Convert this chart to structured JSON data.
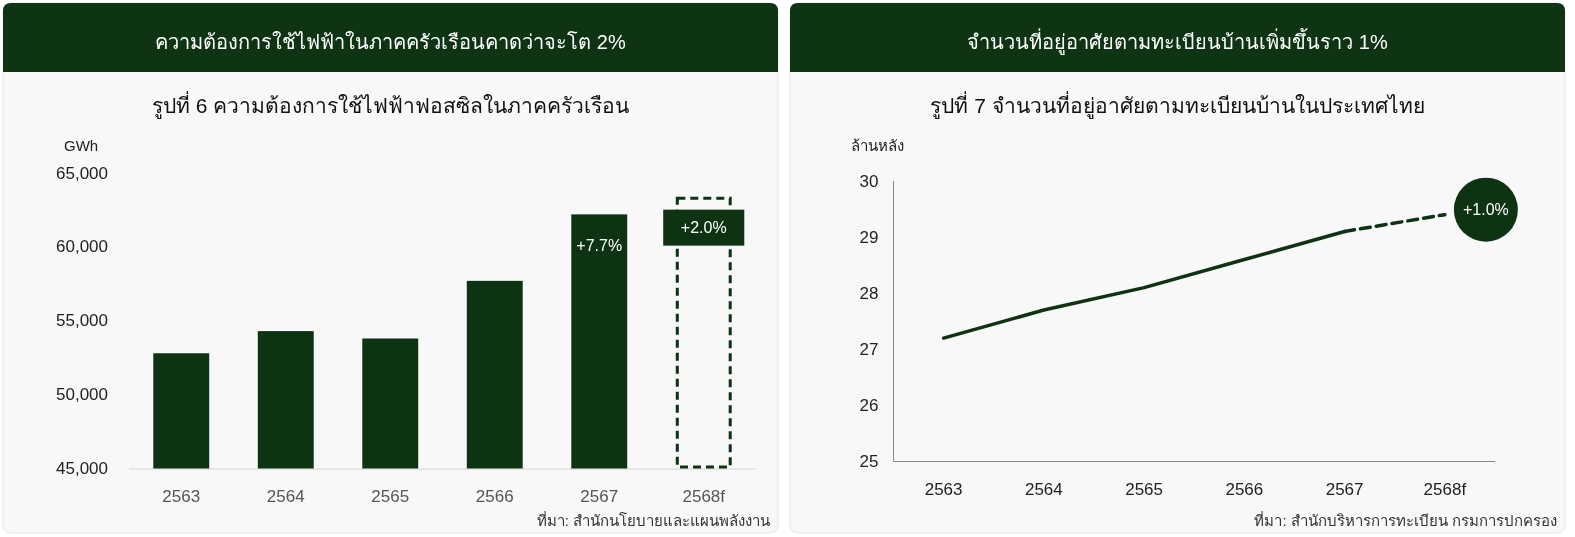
{
  "chart_data": [
    {
      "type": "bar",
      "title": "ความต้องการใช้ไฟฟ้าในภาคครัวเรือนคาดว่าจะโต 2%",
      "subtitle": "รูปที่ 6 ความต้องการใช้ไฟฟ้าฟอสซิลในภาคครัวเรือน",
      "ylabel": "GWh",
      "categories": [
        "2563",
        "2564",
        "2565",
        "2566",
        "2567",
        "2568f"
      ],
      "series": [
        {
          "color": "#0e3313",
          "values": [
            52800,
            54300,
            53800,
            57700,
            62200,
            null
          ]
        },
        {
          "color": "#0e3313",
          "line_style": "dashed",
          "values": [
            null,
            null,
            null,
            null,
            null,
            63400
          ]
        }
      ],
      "ylim": [
        45000,
        65000
      ],
      "yticks": [
        {
          "value": 45000,
          "label": "45,000"
        },
        {
          "value": 50000,
          "label": "50,000"
        },
        {
          "value": 55000,
          "label": "55,000"
        },
        {
          "value": 60000,
          "label": "60,000"
        },
        {
          "value": 65000,
          "label": "65,000"
        }
      ],
      "annotations": [
        {
          "text": "+7.7%",
          "x": "2567",
          "y": 62200
        },
        {
          "text": "+2.0%",
          "x": "2568f",
          "y": 63400
        },
        "ที่มา: สำนักนโยบายและแผนพลังงาน"
      ]
    },
    {
      "type": "line",
      "title": "จำนวนที่อยู่อาศัยตามทะเบียนบ้านเพิ่มขึ้นราว 1%",
      "subtitle": "รูปที่ 7 จำนวนที่อยู่อาศัยตามทะเบียนบ้านในประเทศไทย",
      "ylabel": "ล้านหลัง",
      "categories": [
        "2563",
        "2564",
        "2565",
        "2566",
        "2567",
        "2568f"
      ],
      "series": [
        {
          "color": "#0e3313",
          "values": [
            27.2,
            27.7,
            28.1,
            28.6,
            29.1,
            null
          ]
        },
        {
          "color": "#0e3313",
          "line_style": "dashed",
          "values": [
            null,
            null,
            null,
            null,
            29.1,
            29.4
          ]
        }
      ],
      "ylim": [
        25,
        30
      ],
      "yticks": [
        25,
        26,
        27,
        28,
        29,
        30
      ],
      "annotations": [
        {
          "text": "+1.0%",
          "x": "2568f",
          "y": 29.4
        },
        "ที่มา: สำนักบริหารการทะเบียน กรมการปกครอง"
      ]
    }
  ]
}
